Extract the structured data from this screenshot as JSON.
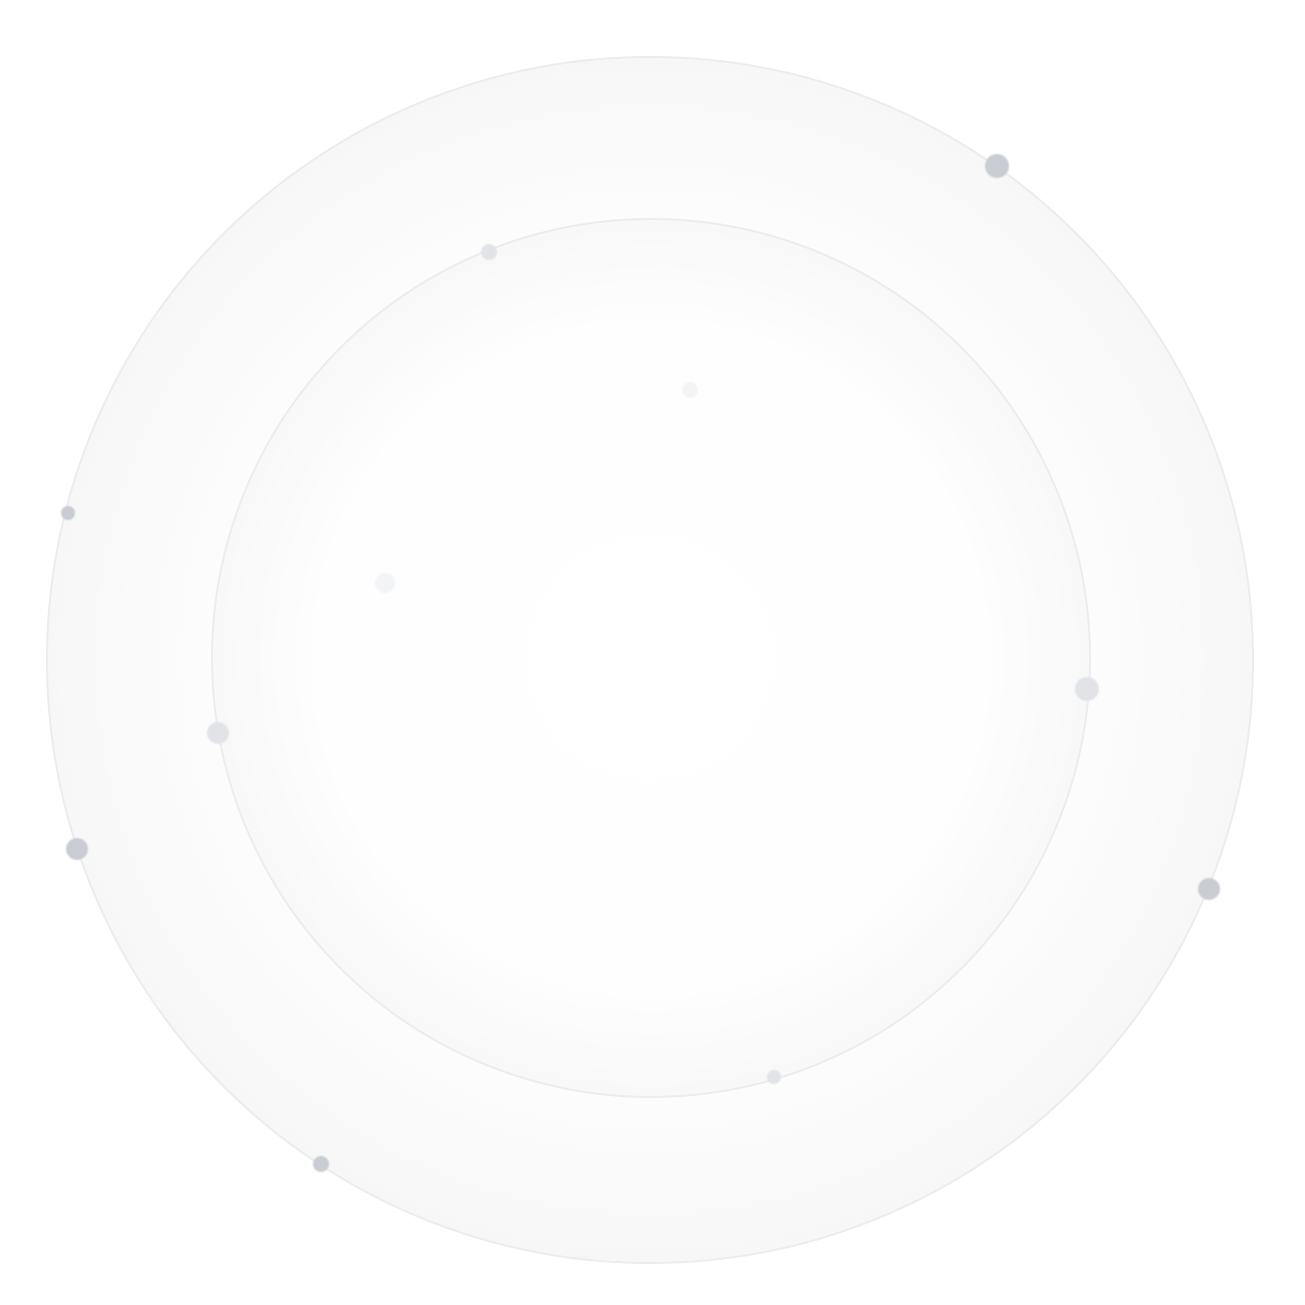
{
  "colors": {
    "background": "#ffffff",
    "ring_stroke": "#ececee",
    "ring_fill_edge": "#f7f7f8",
    "dot_dark": "#c9ccd2",
    "dot_light": "#e1e3e7",
    "dot_faint": "#f3f4f6"
  },
  "rings": [
    {
      "id": "outer-ring"
    },
    {
      "id": "inner-ring"
    }
  ],
  "dots": [
    {
      "ring": "outer",
      "tone": "dark"
    },
    {
      "ring": "inner",
      "tone": "light"
    },
    {
      "ring": "outer",
      "tone": "dark"
    },
    {
      "ring": "inner",
      "tone": "light"
    },
    {
      "ring": "inner",
      "tone": "light"
    },
    {
      "ring": "outer",
      "tone": "dark"
    },
    {
      "ring": "outer",
      "tone": "dark"
    },
    {
      "ring": "inner",
      "tone": "light"
    },
    {
      "ring": "outer",
      "tone": "dark"
    },
    {
      "ring": "inside",
      "tone": "faint"
    },
    {
      "ring": "inside",
      "tone": "faint"
    }
  ]
}
